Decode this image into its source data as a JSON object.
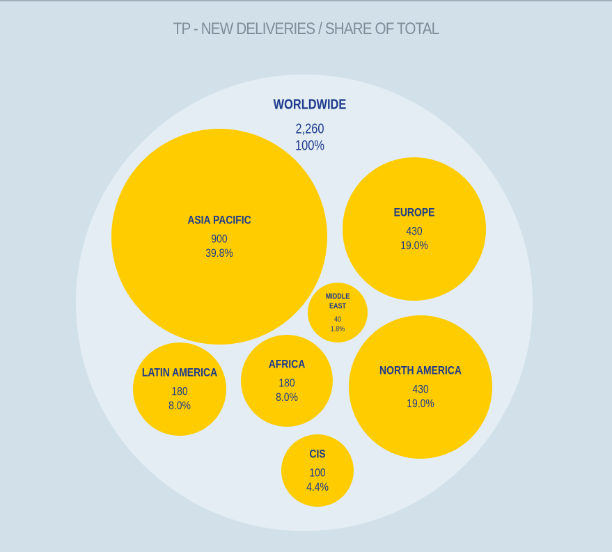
{
  "chart_data": {
    "type": "bubble",
    "title": "TP - NEW DELIVERIES / SHARE OF TOTAL",
    "total": {
      "name": "WORLDWIDE",
      "value": "2,260",
      "share": "100%"
    },
    "series": [
      {
        "name": "ASIA PACIFIC",
        "value": "900",
        "share": "39.8%"
      },
      {
        "name": "EUROPE",
        "value": "430",
        "share": "19.0%"
      },
      {
        "name": "MIDDLE EAST",
        "value": "40",
        "share": "1.8%"
      },
      {
        "name": "NORTH AMERICA",
        "value": "430",
        "share": "19.0%"
      },
      {
        "name": "LATIN AMERICA",
        "value": "180",
        "share": "8.0%"
      },
      {
        "name": "AFRICA",
        "value": "180",
        "share": "8.0%"
      },
      {
        "name": "CIS",
        "value": "100",
        "share": "4.4%"
      }
    ]
  },
  "colors": {
    "background": "#d2e1e9",
    "outer_circle": "#e3edf3",
    "bubble": "#ffcc00",
    "label": "#1e3a8c",
    "title": "#7d8c97"
  }
}
